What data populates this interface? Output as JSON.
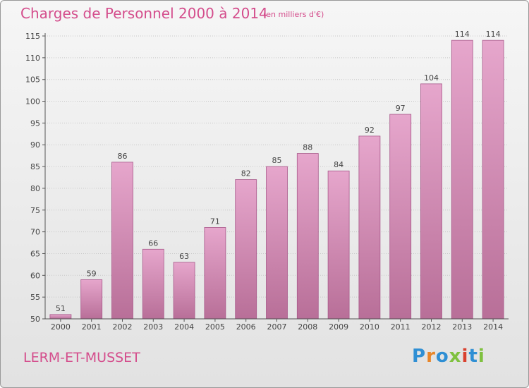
{
  "chart_data": {
    "type": "bar",
    "title": "Charges de Personnel 2000 à 2014",
    "subtitle": "(en milliers d'€)",
    "categories": [
      "2000",
      "2001",
      "2002",
      "2003",
      "2004",
      "2005",
      "2006",
      "2007",
      "2008",
      "2009",
      "2010",
      "2011",
      "2012",
      "2013",
      "2014"
    ],
    "values": [
      51,
      59,
      86,
      66,
      63,
      71,
      82,
      85,
      88,
      84,
      92,
      97,
      104,
      114,
      114
    ],
    "ylim": [
      50,
      115
    ],
    "yticks": [
      50,
      55,
      60,
      65,
      70,
      75,
      80,
      85,
      90,
      95,
      100,
      105,
      110,
      115
    ],
    "grid": true,
    "bar_color_light": "#e6a6cc",
    "bar_color_dark": "#b86f98"
  },
  "footer": {
    "commune": "LERM-ET-MUSSET",
    "logo_letters": [
      "P",
      "r",
      "o",
      "x",
      "i",
      "t",
      "i"
    ]
  }
}
